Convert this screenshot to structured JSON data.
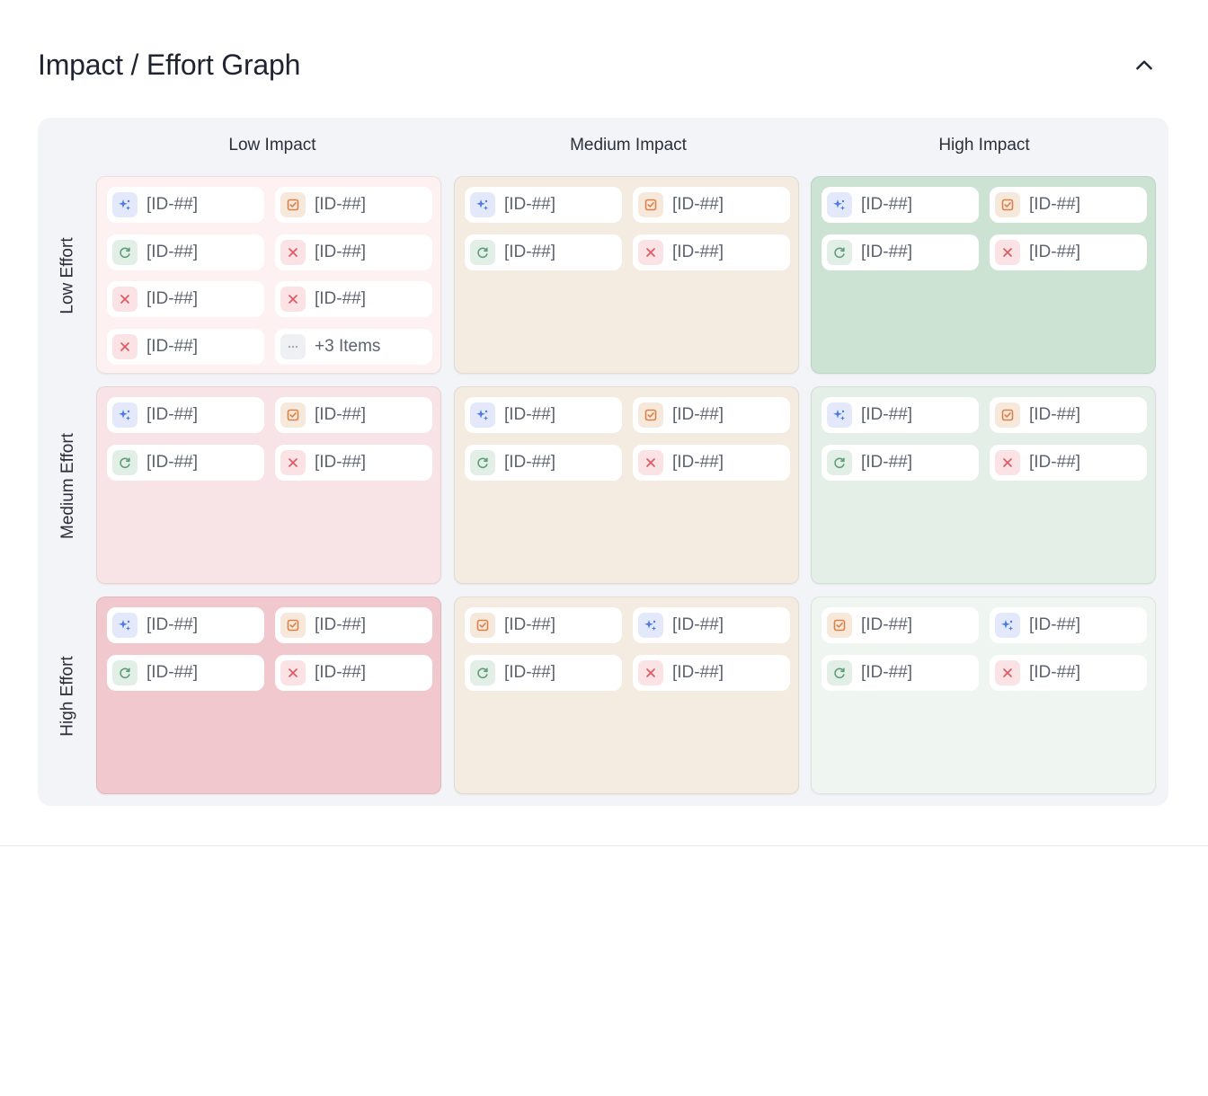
{
  "header": {
    "title": "Impact / Effort Graph",
    "collapse_icon": "chevron-up-icon"
  },
  "columns": [
    "Low Impact",
    "Medium Impact",
    "High Impact"
  ],
  "rows": [
    "Low Effort",
    "Medium Effort",
    "High Effort"
  ],
  "colors": {
    "low_effort": [
      "#fdf1f1",
      "#f4ece1",
      "#cce3d4"
    ],
    "medium_effort": [
      "#f8e4e7",
      "#f4ece1",
      "#e4efe8"
    ],
    "high_effort": [
      "#f1c8cd",
      "#f4ece1",
      "#eff6f1"
    ]
  },
  "cells": [
    [
      {
        "items": [
          {
            "icon": "sparkle",
            "label": "[ID-##]"
          },
          {
            "icon": "check",
            "label": "[ID-##]"
          },
          {
            "icon": "cycle",
            "label": "[ID-##]"
          },
          {
            "icon": "close",
            "label": "[ID-##]"
          },
          {
            "icon": "close",
            "label": "[ID-##]"
          },
          {
            "icon": "close",
            "label": "[ID-##]"
          },
          {
            "icon": "close",
            "label": "[ID-##]"
          },
          {
            "icon": "more",
            "label": "+3 Items"
          }
        ]
      },
      {
        "items": [
          {
            "icon": "sparkle",
            "label": "[ID-##]"
          },
          {
            "icon": "check",
            "label": "[ID-##]"
          },
          {
            "icon": "cycle",
            "label": "[ID-##]"
          },
          {
            "icon": "close",
            "label": "[ID-##]"
          }
        ]
      },
      {
        "items": [
          {
            "icon": "sparkle",
            "label": "[ID-##]"
          },
          {
            "icon": "check",
            "label": "[ID-##]"
          },
          {
            "icon": "cycle",
            "label": "[ID-##]"
          },
          {
            "icon": "close",
            "label": "[ID-##]"
          }
        ]
      }
    ],
    [
      {
        "items": [
          {
            "icon": "sparkle",
            "label": "[ID-##]"
          },
          {
            "icon": "check",
            "label": "[ID-##]"
          },
          {
            "icon": "cycle",
            "label": "[ID-##]"
          },
          {
            "icon": "close",
            "label": "[ID-##]"
          }
        ]
      },
      {
        "items": [
          {
            "icon": "sparkle",
            "label": "[ID-##]"
          },
          {
            "icon": "check",
            "label": "[ID-##]"
          },
          {
            "icon": "cycle",
            "label": "[ID-##]"
          },
          {
            "icon": "close",
            "label": "[ID-##]"
          }
        ]
      },
      {
        "items": [
          {
            "icon": "sparkle",
            "label": "[ID-##]"
          },
          {
            "icon": "check",
            "label": "[ID-##]"
          },
          {
            "icon": "cycle",
            "label": "[ID-##]"
          },
          {
            "icon": "close",
            "label": "[ID-##]"
          }
        ]
      }
    ],
    [
      {
        "items": [
          {
            "icon": "sparkle",
            "label": "[ID-##]"
          },
          {
            "icon": "check",
            "label": "[ID-##]"
          },
          {
            "icon": "cycle",
            "label": "[ID-##]"
          },
          {
            "icon": "close",
            "label": "[ID-##]"
          }
        ]
      },
      {
        "items": [
          {
            "icon": "check",
            "label": "[ID-##]"
          },
          {
            "icon": "sparkle",
            "label": "[ID-##]"
          },
          {
            "icon": "cycle",
            "label": "[ID-##]"
          },
          {
            "icon": "close",
            "label": "[ID-##]"
          }
        ]
      },
      {
        "items": [
          {
            "icon": "check",
            "label": "[ID-##]"
          },
          {
            "icon": "sparkle",
            "label": "[ID-##]"
          },
          {
            "icon": "cycle",
            "label": "[ID-##]"
          },
          {
            "icon": "close",
            "label": "[ID-##]"
          }
        ]
      }
    ]
  ]
}
